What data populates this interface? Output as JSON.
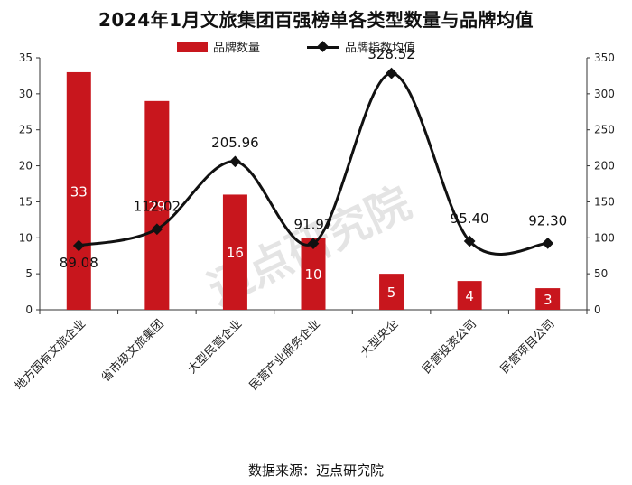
{
  "title": "2024年1月文旅集团百强榜单各类型数量与品牌均值",
  "legend": {
    "bar_label": "品牌数量",
    "line_label": "品牌指数均值"
  },
  "source": "数据来源：迈点研究院",
  "watermark": "迈点研究院",
  "colors": {
    "bar": "#c8161d",
    "line": "#111111",
    "axis": "#333333",
    "bar_label_text": "#ffffff",
    "line_label_text": "#111111"
  },
  "chart_data": {
    "type": "bar",
    "categories": [
      "地方国有文旅企业",
      "省市级文旅集团",
      "大型民营企业",
      "民营产业服务企业",
      "大型央企",
      "民营投资公司",
      "民营项目公司"
    ],
    "series": [
      {
        "name": "品牌数量",
        "type": "bar",
        "axis": "left",
        "values": [
          33,
          29,
          16,
          10,
          5,
          4,
          3
        ]
      },
      {
        "name": "品牌指数均值",
        "type": "line",
        "axis": "right",
        "smooth": true,
        "values": [
          89.08,
          112.02,
          205.96,
          91.97,
          328.52,
          95.4,
          92.3
        ]
      }
    ],
    "bar_labels": [
      "33",
      "29",
      "16",
      "10",
      "5",
      "4",
      "3"
    ],
    "line_labels": [
      "89.08",
      "112.02",
      "205.96",
      "91.97",
      "328.52",
      "95.40",
      "92.30"
    ],
    "left_axis": {
      "ylim": [
        0,
        35
      ],
      "ticks": [
        "0",
        "5",
        "10",
        "15",
        "20",
        "25",
        "30",
        "35"
      ]
    },
    "right_axis": {
      "ylim": [
        0,
        350
      ],
      "ticks": [
        "0",
        "50",
        "100",
        "150",
        "200",
        "250",
        "300",
        "350"
      ]
    },
    "grid": false,
    "legend_position": "top"
  }
}
